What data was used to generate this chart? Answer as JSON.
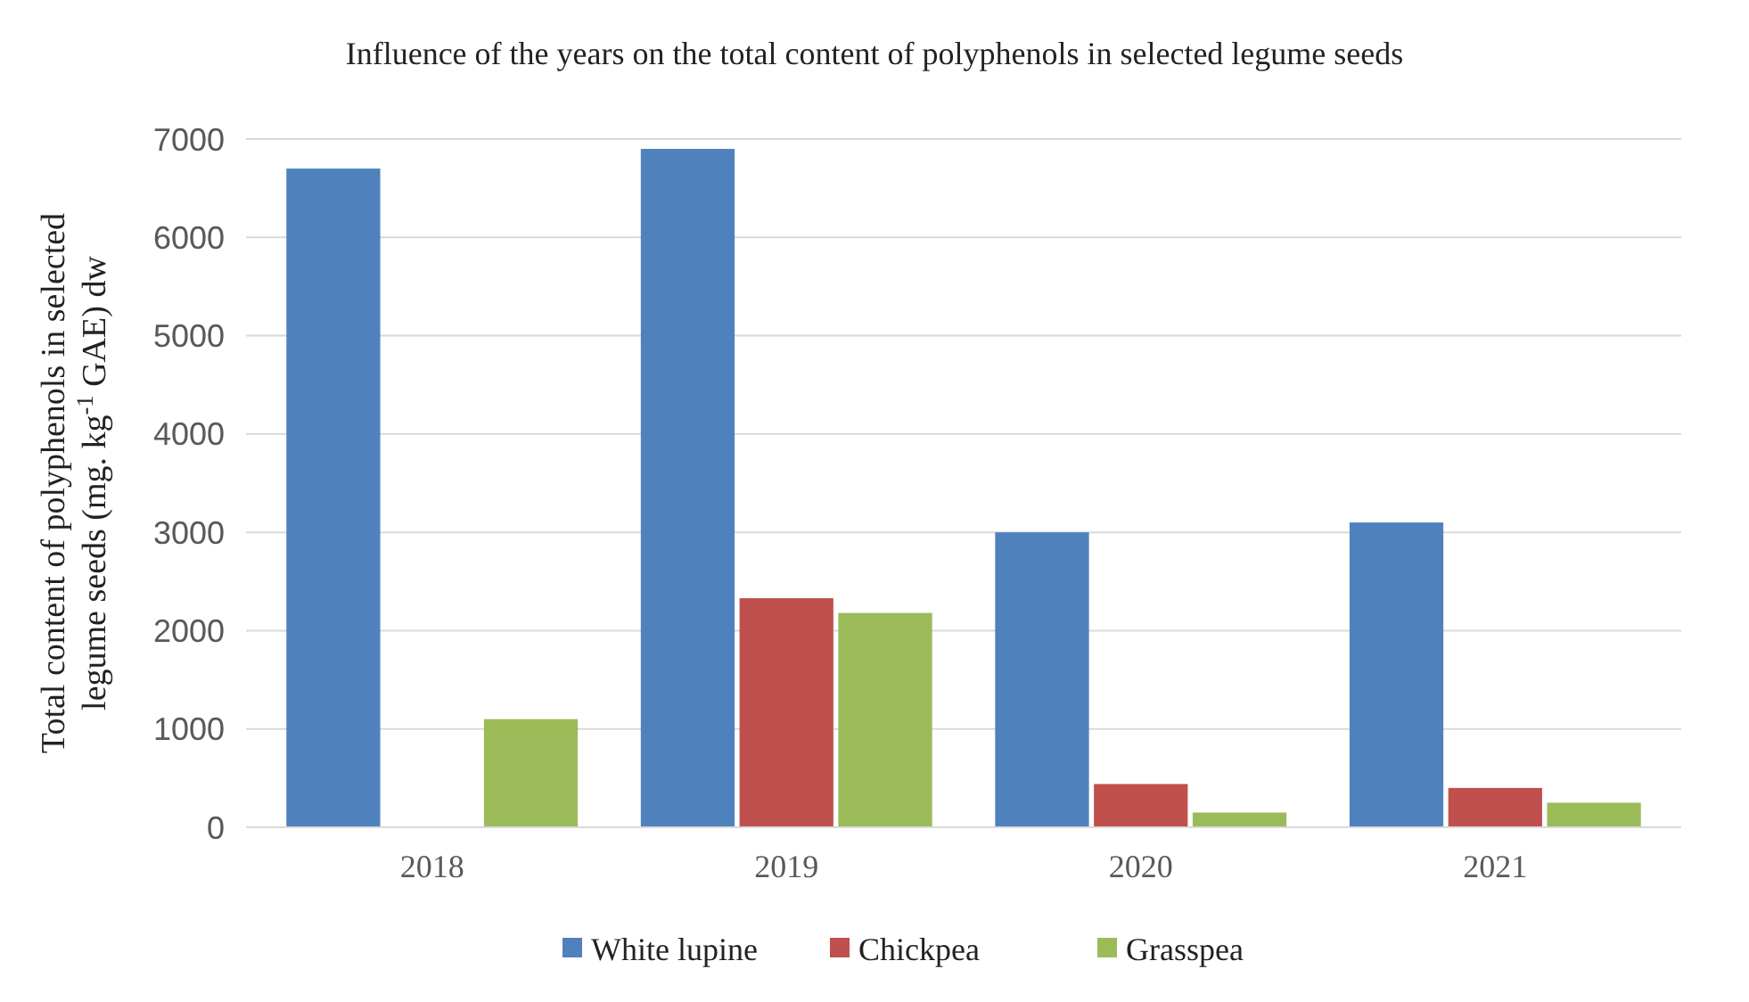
{
  "chart_data": {
    "type": "bar",
    "title": "Influence of the years on the total content of polyphenols in selected legume seeds",
    "ylabel": "Total content of polyphenols in selected legume seeds (mg. kg$^{-1}$ GAE) dw",
    "categories": [
      "2018",
      "2019",
      "2020",
      "2021"
    ],
    "series": [
      {
        "name": "White lupine",
        "color": "#4f81bd",
        "values": [
          6700,
          6900,
          3000,
          3100
        ]
      },
      {
        "name": "Chickpea",
        "color": "#c0504d",
        "values": [
          null,
          2330,
          440,
          400
        ]
      },
      {
        "name": "Grasspea",
        "color": "#9bbb59",
        "values": [
          1100,
          2180,
          150,
          250
        ]
      }
    ],
    "ylim": [
      0,
      7000
    ],
    "yticks": [
      0,
      1000,
      2000,
      3000,
      4000,
      5000,
      6000,
      7000
    ],
    "grid": "y",
    "legend": "bottom"
  }
}
